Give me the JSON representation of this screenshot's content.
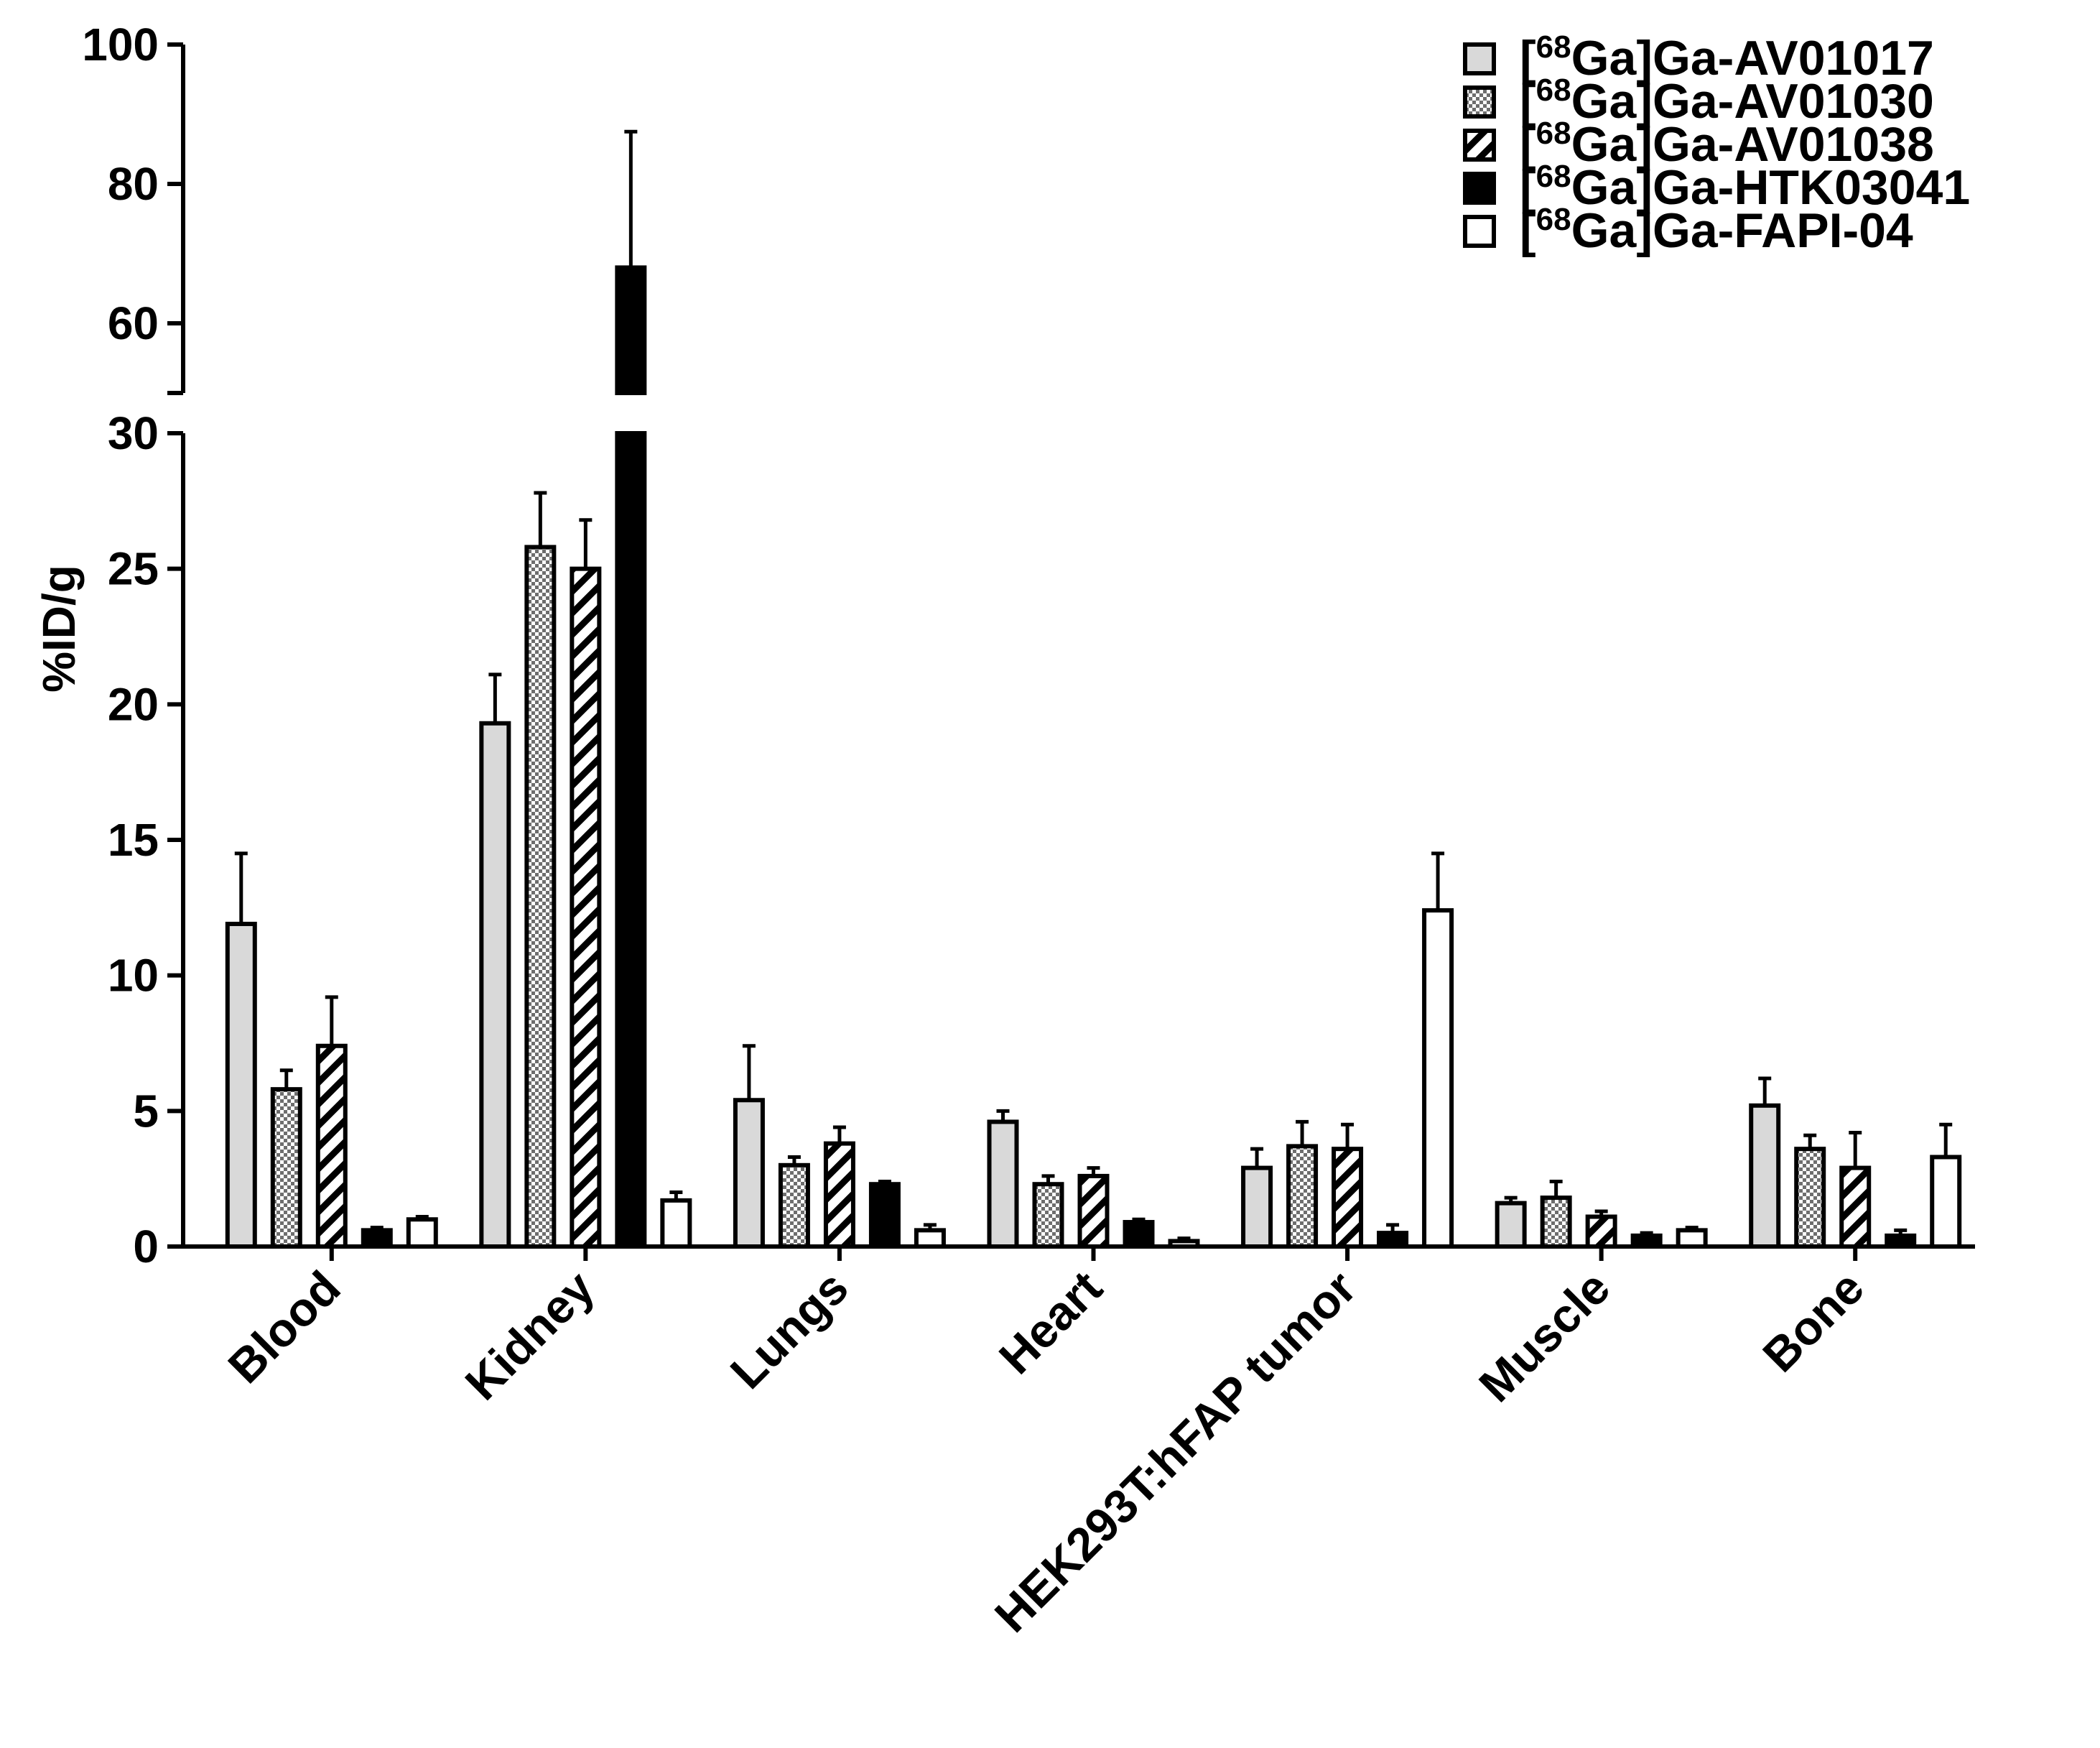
{
  "chart_data": {
    "type": "bar",
    "ylabel": "%ID/g",
    "xlabel": "",
    "title": "",
    "axis_break": {
      "lower_range": [
        0,
        30
      ],
      "upper_range": [
        50,
        100
      ]
    },
    "yticks_lower": [
      0,
      5,
      10,
      15,
      20,
      25,
      30
    ],
    "yticks_upper": [
      60,
      80,
      100
    ],
    "legend_position": "top-right",
    "categories": [
      "Blood",
      "Kidney",
      "Lungs",
      "Heart",
      "HEK293T:hFAP tumor",
      "Muscle",
      "Bone"
    ],
    "series": [
      {
        "name": "[68Ga]Ga-AV01017",
        "legend_prefix": "[",
        "legend_sup": "68",
        "legend_suffix": "Ga]Ga-AV01017",
        "pattern": "light-gray",
        "fill_color": "#d9d9d9",
        "values": [
          11.9,
          19.3,
          5.4,
          4.6,
          2.9,
          1.6,
          5.2
        ],
        "errors": [
          2.6,
          1.8,
          2.0,
          0.4,
          0.7,
          0.2,
          1.0
        ]
      },
      {
        "name": "[68Ga]Ga-AV01030",
        "legend_prefix": "[",
        "legend_sup": "68",
        "legend_suffix": "Ga]Ga-AV01030",
        "pattern": "checkered",
        "fill_color": "#8a8a8a",
        "values": [
          5.8,
          25.8,
          3.0,
          2.3,
          3.7,
          1.8,
          3.6
        ],
        "errors": [
          0.7,
          2.0,
          0.3,
          0.3,
          0.9,
          0.6,
          0.5
        ]
      },
      {
        "name": "[68Ga]Ga-AV01038",
        "legend_prefix": "[",
        "legend_sup": "68",
        "legend_suffix": "Ga]Ga-AV01038",
        "pattern": "diagonal-stripes",
        "fill_color": "#000000",
        "values": [
          7.4,
          25.0,
          3.8,
          2.6,
          3.6,
          1.1,
          2.9
        ],
        "errors": [
          1.8,
          1.8,
          0.6,
          0.3,
          0.9,
          0.2,
          1.3
        ]
      },
      {
        "name": "[68Ga]Ga-HTK03041",
        "legend_prefix": "[",
        "legend_sup": "68",
        "legend_suffix": "Ga]Ga-HTK03041",
        "pattern": "solid-black",
        "fill_color": "#000000",
        "values": [
          0.6,
          68.0,
          2.3,
          0.9,
          0.5,
          0.4,
          0.4
        ],
        "errors": [
          0.1,
          19.5,
          0.1,
          0.1,
          0.3,
          0.1,
          0.2
        ]
      },
      {
        "name": "[68Ga]Ga-FAPI-04",
        "legend_prefix": "[",
        "legend_sup": "68",
        "legend_suffix": "Ga]Ga-FAPI-04",
        "pattern": "white",
        "fill_color": "#ffffff",
        "values": [
          1.0,
          1.7,
          0.6,
          0.2,
          12.4,
          0.6,
          3.3
        ],
        "errors": [
          0.1,
          0.3,
          0.2,
          0.1,
          2.1,
          0.1,
          1.2
        ]
      }
    ]
  }
}
